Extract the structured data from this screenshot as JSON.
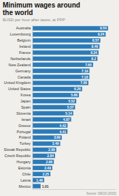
{
  "chart_data": {
    "type": "bar",
    "orientation": "horizontal",
    "title": "Minimum wages around\nthe world",
    "subtitle": "$USD per hour after taxes, at PPP",
    "source": "Source: OECD (2015)",
    "categories": [
      "Australia",
      "Luxembourg",
      "Belgium",
      "Ireland",
      "France",
      "Netherlands",
      "New Zealand",
      "Germany",
      "Canada",
      "United Kingdom",
      "United States",
      "Korea",
      "Japan",
      "Spain",
      "Slovenia",
      "Israel",
      "Greece",
      "Portugal",
      "Poland",
      "Turkey",
      "Slovak Republic",
      "Czech Republic",
      "Hungary",
      "Estonia",
      "Chile",
      "Latvia",
      "Mexico"
    ],
    "values": [
      9.54,
      9.24,
      8.57,
      8.46,
      8.34,
      8.2,
      7.65,
      7.19,
      7.18,
      7.06,
      6.26,
      5.86,
      5.52,
      5.37,
      5.14,
      4.87,
      4.42,
      4.41,
      3.69,
      3.49,
      2.99,
      2.84,
      2.68,
      2.49,
      2.25,
      1.46,
      1.01
    ],
    "color": "#2b7bb9",
    "xlim": [
      0,
      10.5
    ],
    "data_labels": true,
    "tick_labels": "y",
    "grid": false
  }
}
